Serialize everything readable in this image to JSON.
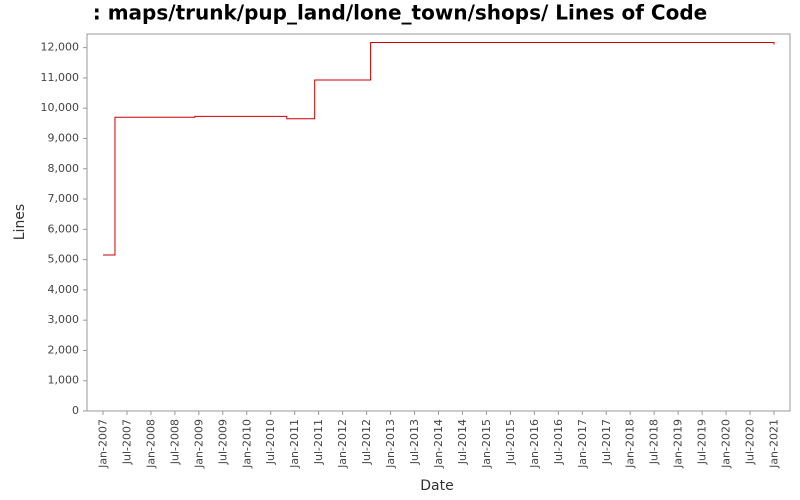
{
  "chart_data": {
    "type": "line",
    "step": "after",
    "title": ": maps/trunk/pup_land/lone_town/shops/ Lines of Code",
    "x_label": "Date",
    "y_label": "Lines",
    "x": [
      "2007-01",
      "2007-04",
      "2008-12",
      "2010-11",
      "2011-06",
      "2012-08",
      "2021-01"
    ],
    "series": [
      {
        "name": "Lines",
        "color": "#cc0000",
        "values": [
          5150,
          9700,
          9730,
          9650,
          10930,
          12170,
          12100
        ]
      }
    ],
    "xlim": [
      "2006-09",
      "2021-05"
    ],
    "xticks": [
      {
        "value": "2007-01",
        "label": "Jan-2007"
      },
      {
        "value": "2007-07",
        "label": "Jul-2007"
      },
      {
        "value": "2008-01",
        "label": "Jan-2008"
      },
      {
        "value": "2008-07",
        "label": "Jul-2008"
      },
      {
        "value": "2009-01",
        "label": "Jan-2009"
      },
      {
        "value": "2009-07",
        "label": "Jul-2009"
      },
      {
        "value": "2010-01",
        "label": "Jan-2010"
      },
      {
        "value": "2010-07",
        "label": "Jul-2010"
      },
      {
        "value": "2011-01",
        "label": "Jan-2011"
      },
      {
        "value": "2011-07",
        "label": "Jul-2011"
      },
      {
        "value": "2012-01",
        "label": "Jan-2012"
      },
      {
        "value": "2012-07",
        "label": "Jul-2012"
      },
      {
        "value": "2013-01",
        "label": "Jan-2013"
      },
      {
        "value": "2013-07",
        "label": "Jul-2013"
      },
      {
        "value": "2014-01",
        "label": "Jan-2014"
      },
      {
        "value": "2014-07",
        "label": "Jul-2014"
      },
      {
        "value": "2015-01",
        "label": "Jan-2015"
      },
      {
        "value": "2015-07",
        "label": "Jul-2015"
      },
      {
        "value": "2016-01",
        "label": "Jan-2016"
      },
      {
        "value": "2016-07",
        "label": "Jul-2016"
      },
      {
        "value": "2017-01",
        "label": "Jan-2017"
      },
      {
        "value": "2017-07",
        "label": "Jul-2017"
      },
      {
        "value": "2018-01",
        "label": "Jan-2018"
      },
      {
        "value": "2018-07",
        "label": "Jul-2018"
      },
      {
        "value": "2019-01",
        "label": "Jan-2019"
      },
      {
        "value": "2019-07",
        "label": "Jul-2019"
      },
      {
        "value": "2020-01",
        "label": "Jan-2020"
      },
      {
        "value": "2020-07",
        "label": "Jul-2020"
      },
      {
        "value": "2021-01",
        "label": "Jan-2021"
      }
    ],
    "ylim": [
      0,
      12450
    ],
    "yticks": [
      0,
      {
        "value": 1000,
        "label": "1,000"
      },
      {
        "value": 2000,
        "label": "2,000"
      },
      {
        "value": 3000,
        "label": "3,000"
      },
      {
        "value": 4000,
        "label": "4,000"
      },
      {
        "value": 5000,
        "label": "5,000"
      },
      {
        "value": 6000,
        "label": "6,000"
      },
      {
        "value": 7000,
        "label": "7,000"
      },
      {
        "value": 8000,
        "label": "8,000"
      },
      {
        "value": 9000,
        "label": "9,000"
      },
      {
        "value": 10000,
        "label": "10,000"
      },
      {
        "value": 11000,
        "label": "11,000"
      },
      {
        "value": 12000,
        "label": "12,000"
      }
    ],
    "grid": false
  }
}
